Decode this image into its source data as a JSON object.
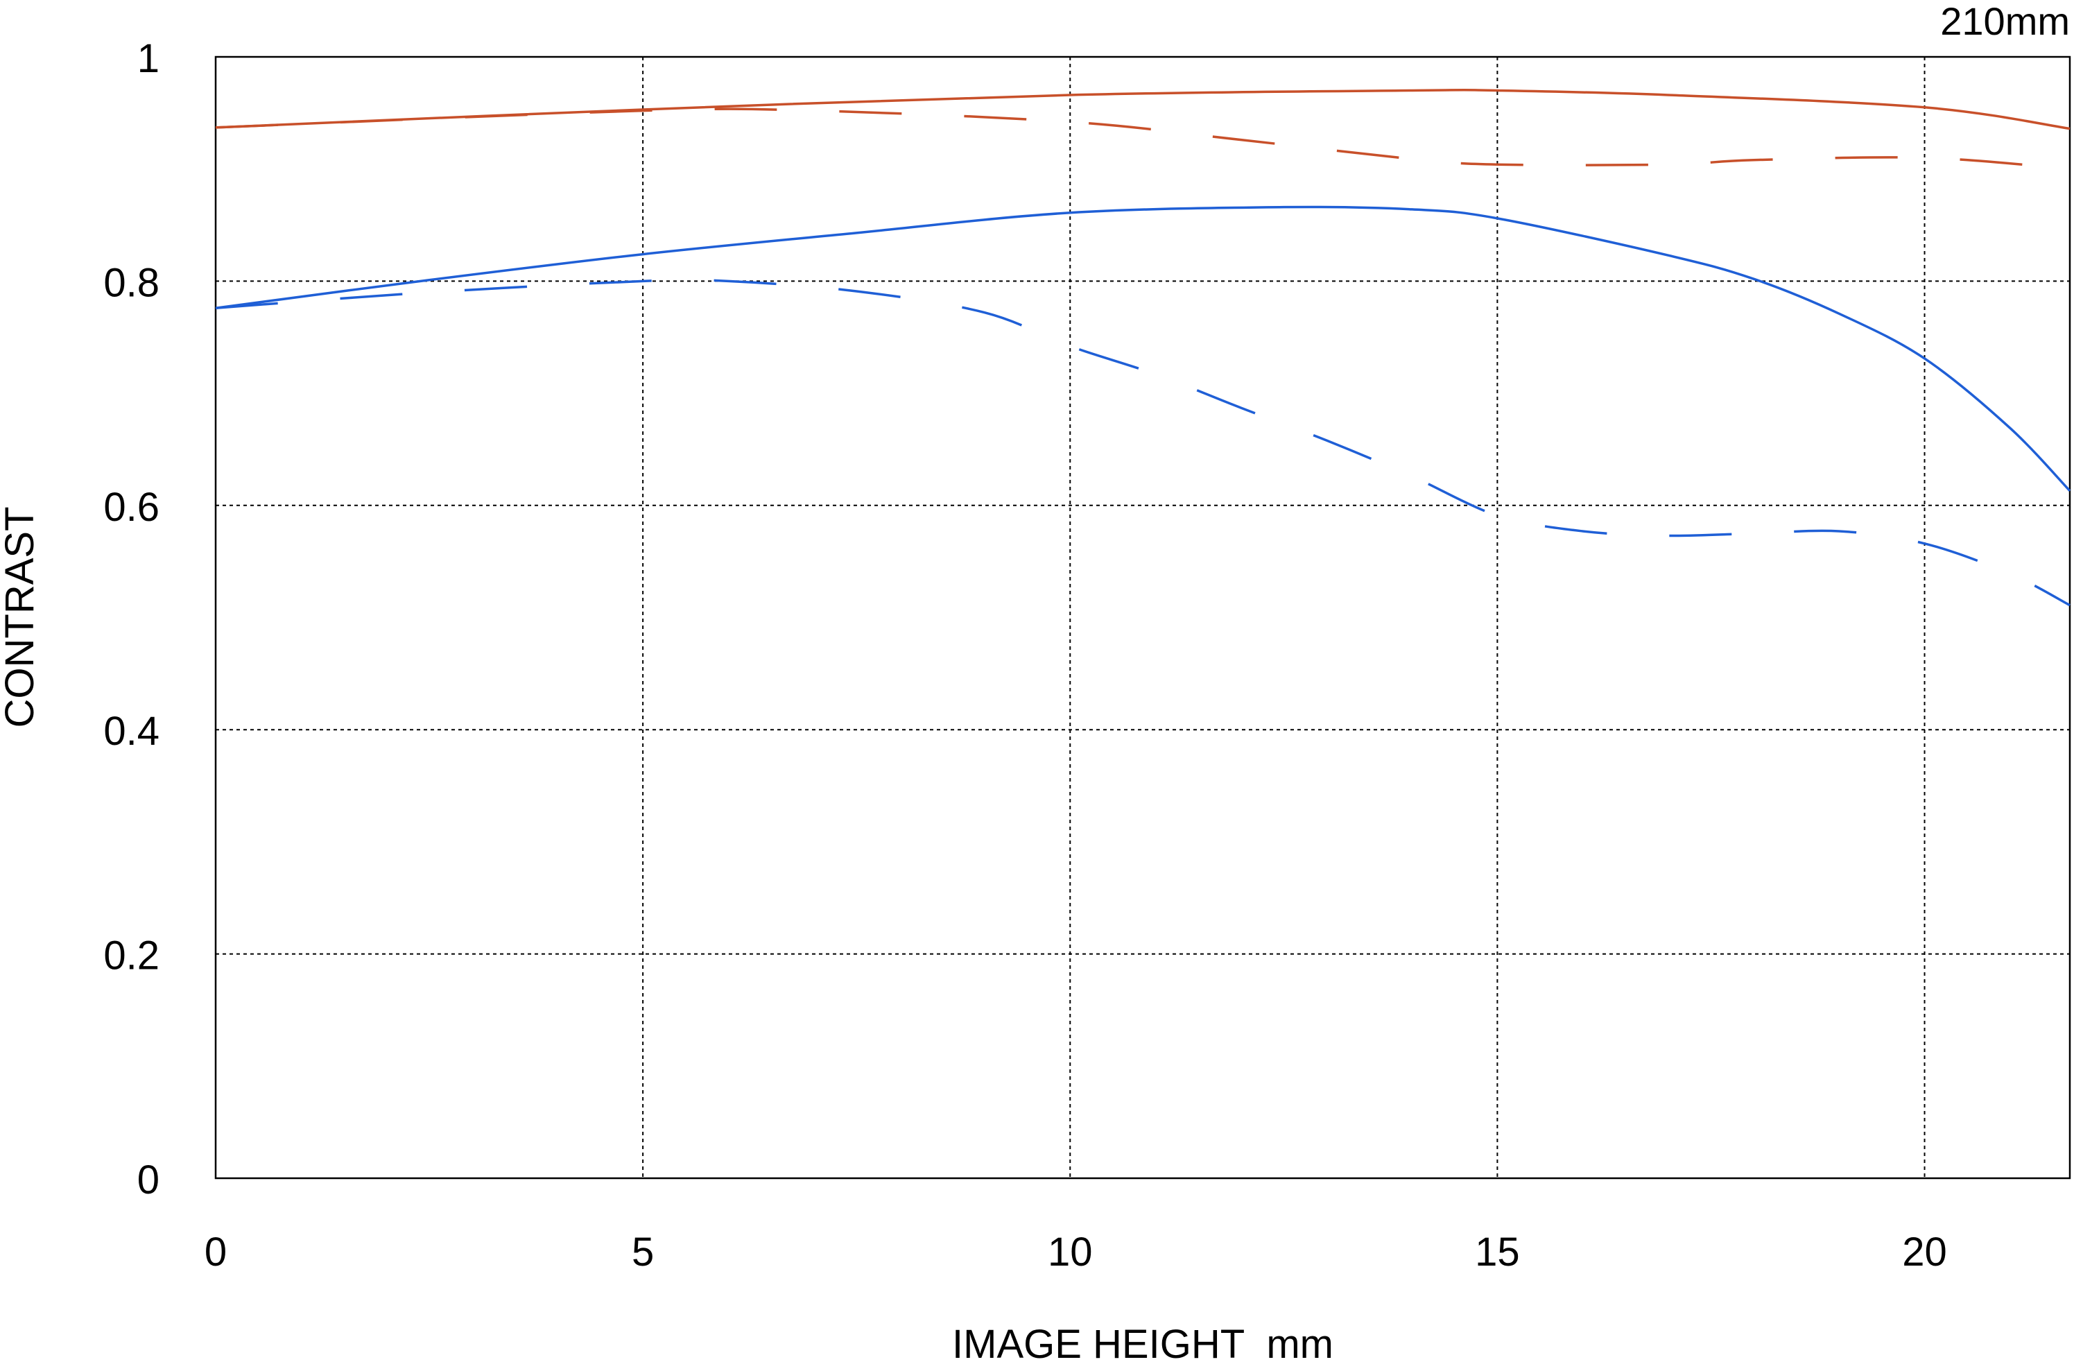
{
  "chart_data": {
    "type": "line",
    "title": "210mm",
    "xlabel": "IMAGE HEIGHT  mm",
    "ylabel": "CONTRAST",
    "xlim": [
      0,
      21.7
    ],
    "ylim": [
      0,
      1
    ],
    "xticks": [
      0,
      5,
      10,
      15,
      20
    ],
    "xtick_labels": [
      "0",
      "5",
      "10",
      "15",
      "20"
    ],
    "yticks": [
      0,
      0.2,
      0.4,
      0.6,
      0.8,
      1
    ],
    "ytick_labels": [
      "0",
      "0.2",
      "0.4",
      "0.6",
      "0.8",
      "1"
    ],
    "grid": true,
    "series": [
      {
        "color": "#c8502a",
        "style": "solid",
        "x": [
          0,
          5,
          10,
          14,
          15,
          17,
          20,
          21.7
        ],
        "y": [
          0.937,
          0.953,
          0.966,
          0.97,
          0.97,
          0.966,
          0.955,
          0.936
        ]
      },
      {
        "color": "#c8502a",
        "style": "dashed",
        "x": [
          0,
          5,
          7,
          10,
          12,
          14,
          15,
          17,
          18,
          20,
          21.7
        ],
        "y": [
          0.937,
          0.952,
          0.952,
          0.942,
          0.926,
          0.909,
          0.904,
          0.904,
          0.908,
          0.91,
          0.9
        ]
      },
      {
        "color": "#1f5fd6",
        "style": "solid",
        "x": [
          0,
          2.5,
          5,
          7.5,
          10,
          12.5,
          14,
          15,
          17,
          18,
          19,
          20,
          21,
          21.7
        ],
        "y": [
          0.776,
          0.801,
          0.824,
          0.843,
          0.861,
          0.866,
          0.864,
          0.856,
          0.823,
          0.802,
          0.771,
          0.731,
          0.669,
          0.613
        ]
      },
      {
        "color": "#1f5fd6",
        "style": "dashed",
        "x": [
          0,
          2.5,
          5,
          6,
          7.5,
          9,
          10,
          11,
          12,
          13,
          14,
          15,
          16,
          17,
          18,
          19,
          20,
          21,
          21.7
        ],
        "y": [
          0.776,
          0.79,
          0.8,
          0.8,
          0.791,
          0.772,
          0.742,
          0.717,
          0.687,
          0.658,
          0.626,
          0.591,
          0.577,
          0.573,
          0.575,
          0.577,
          0.566,
          0.539,
          0.511
        ]
      }
    ]
  }
}
